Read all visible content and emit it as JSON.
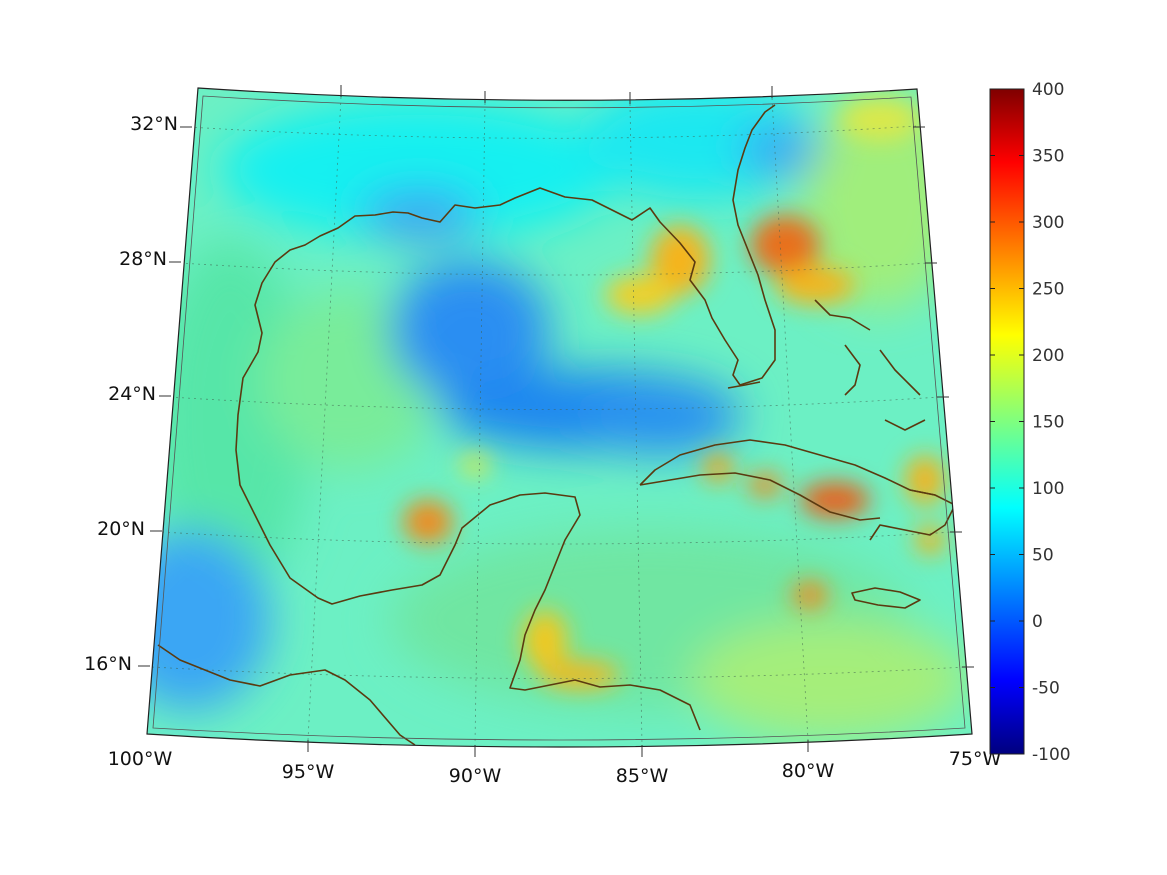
{
  "map": {
    "projection": "conic",
    "extent": {
      "lon": [
        -100,
        -75
      ],
      "lat": [
        14,
        33
      ]
    },
    "lon_ticks": [
      "100°W",
      "95°W",
      "90°W",
      "85°W",
      "80°W",
      "75°W"
    ],
    "lat_ticks": [
      "32°N",
      "28°N",
      "24°N",
      "20°N",
      "16°N"
    ],
    "gridlines": "dotted",
    "coastline_color": "#5a3a10",
    "field": {
      "background": "#6cf0c4",
      "features": [
        {
          "name": "central-gulf-low",
          "color": "#1f8cf0"
        },
        {
          "name": "florida-west-high",
          "color": "#f7c21f"
        },
        {
          "name": "bahamas-high",
          "color": "#f06a10"
        },
        {
          "name": "cuba-high",
          "color": "#e8601a"
        },
        {
          "name": "campeche-high",
          "color": "#f08a1a"
        },
        {
          "name": "honduras-high",
          "color": "#f7b51f"
        },
        {
          "name": "pacific-low",
          "color": "#2f9af5"
        }
      ]
    }
  },
  "colorbar": {
    "min": -100,
    "max": 400,
    "ticks": [
      "400",
      "350",
      "300",
      "250",
      "200",
      "150",
      "100",
      "50",
      "0",
      "-50",
      "-100"
    ],
    "colormap": "jet",
    "stops": [
      "#00007f",
      "#0000ff",
      "#007fff",
      "#00ffff",
      "#7fff7f",
      "#ffff00",
      "#ff7f00",
      "#ff0000",
      "#7f0000"
    ]
  }
}
